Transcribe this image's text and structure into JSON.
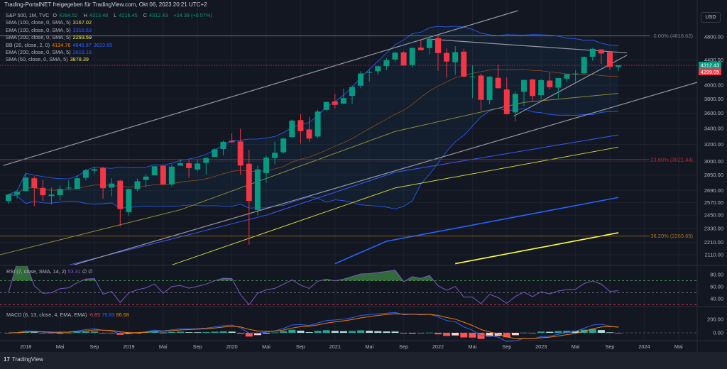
{
  "header": {
    "title": "Trading-PortalNET freigegeben für TradingView.com, Okt 06, 2023 20:21 UTC+2"
  },
  "legend": {
    "symbol": "S&P 500, 1M, TVC",
    "o_label": "O",
    "o": "4284.52",
    "h_label": "H",
    "h": "4313.48",
    "l_label": "L",
    "l": "4216.45",
    "c_label": "C",
    "c": "4312.43",
    "change": "+24.39 (+0.57%)",
    "indicators": [
      {
        "label": "SMA (100, close, 0, SMA, 5)",
        "values": [
          "3167.02"
        ],
        "colors": [
          "#e6e64c"
        ]
      },
      {
        "label": "EMA (100, close, 0, SMA, 5)",
        "values": [
          "3316.63"
        ],
        "colors": [
          "#3d5afe"
        ]
      },
      {
        "label": "SMA (200, close, 0, SMA, 5)",
        "values": [
          "2293.59"
        ],
        "colors": [
          "#ffff3b"
        ]
      },
      {
        "label": "BB (20, close, 2, 0)",
        "values": [
          "4134.76",
          "4645.87",
          "3623.65"
        ],
        "colors": [
          "#f57c00",
          "#2962ff",
          "#2962ff"
        ]
      },
      {
        "label": "EMA (200, close, 0, SMA, 5)",
        "values": [
          "2619.18"
        ],
        "colors": [
          "#2962ff"
        ]
      },
      {
        "label": "SMA (50, close, 0, SMA, 5)",
        "values": [
          "3878.39"
        ],
        "colors": [
          "#e6e64c"
        ]
      }
    ]
  },
  "currency_button": "USD",
  "rsi_legend": {
    "label": "RSI (7, close, SMA, 14, 2)",
    "value": "53.31",
    "extra": "∅ ∅"
  },
  "macd_legend": {
    "label": "MACD (6, 13, close, 4, EMA, EMA)",
    "values": [
      "-6.85",
      "79.83",
      "86.68"
    ],
    "colors": [
      "#f23645",
      "#2962ff",
      "#f57c00"
    ]
  },
  "price_tags": [
    {
      "value": "4312.43",
      "color": "#089981"
    },
    {
      "value": "4299.05",
      "color": "#f23645"
    }
  ],
  "footer": {
    "brand": "TradingView",
    "logo": "17"
  },
  "colors": {
    "up": "#089981",
    "down": "#f23645",
    "bg": "#131722"
  },
  "chart_data": {
    "type": "candlestick",
    "title": "S&P 500, 1M, TVC",
    "scale": "log",
    "start": "2017-11",
    "ohlc": [
      [
        2583,
        2657,
        2557,
        2648
      ],
      [
        2645,
        2695,
        2605,
        2674
      ],
      [
        2683,
        2873,
        2683,
        2824
      ],
      [
        2816,
        2835,
        2533,
        2714
      ],
      [
        2715,
        2801,
        2585,
        2641
      ],
      [
        2633,
        2718,
        2553,
        2648
      ],
      [
        2643,
        2742,
        2594,
        2705
      ],
      [
        2718,
        2791,
        2698,
        2718
      ],
      [
        2704,
        2848,
        2698,
        2816
      ],
      [
        2821,
        2916,
        2796,
        2902
      ],
      [
        2897,
        2941,
        2864,
        2914
      ],
      [
        2926,
        2940,
        2604,
        2712
      ],
      [
        2718,
        2816,
        2631,
        2760
      ],
      [
        2790,
        2800,
        2347,
        2507
      ],
      [
        2477,
        2708,
        2444,
        2704
      ],
      [
        2703,
        2813,
        2681,
        2784
      ],
      [
        2798,
        2860,
        2723,
        2834
      ],
      [
        2848,
        2950,
        2848,
        2946
      ],
      [
        2953,
        2954,
        2751,
        2752
      ],
      [
        2751,
        2964,
        2728,
        2942
      ],
      [
        2953,
        3028,
        2952,
        2980
      ],
      [
        2980,
        3014,
        2822,
        2926
      ],
      [
        2910,
        3022,
        2892,
        2977
      ],
      [
        2984,
        3050,
        2855,
        3038
      ],
      [
        3051,
        3154,
        3051,
        3141
      ],
      [
        3144,
        3248,
        3070,
        3231
      ],
      [
        3245,
        3338,
        3214,
        3226
      ],
      [
        3236,
        3394,
        2855,
        2954
      ],
      [
        2974,
        3136,
        2192,
        2585
      ],
      [
        2499,
        2954,
        2448,
        2912
      ],
      [
        2870,
        3068,
        2766,
        3044
      ],
      [
        3039,
        3233,
        2966,
        3100
      ],
      [
        3105,
        3280,
        3089,
        3271
      ],
      [
        3289,
        3514,
        3284,
        3500
      ],
      [
        3507,
        3588,
        3209,
        3363
      ],
      [
        3385,
        3550,
        3233,
        3270
      ],
      [
        3296,
        3646,
        3279,
        3622
      ],
      [
        3645,
        3760,
        3633,
        3756
      ],
      [
        3764,
        3870,
        3662,
        3714
      ],
      [
        3731,
        3950,
        3725,
        3811
      ],
      [
        3842,
        3994,
        3723,
        3973
      ],
      [
        3992,
        4218,
        3955,
        4181
      ],
      [
        4191,
        4238,
        4056,
        4204
      ],
      [
        4217,
        4302,
        4164,
        4298
      ],
      [
        4300,
        4429,
        4233,
        4395
      ],
      [
        4407,
        4537,
        4367,
        4523
      ],
      [
        4528,
        4546,
        4306,
        4308
      ],
      [
        4317,
        4608,
        4279,
        4605
      ],
      [
        4611,
        4743,
        4560,
        4567
      ],
      [
        4602,
        4808,
        4495,
        4766
      ],
      [
        4778,
        4819,
        4223,
        4516
      ],
      [
        4519,
        4595,
        4115,
        4374
      ],
      [
        4363,
        4637,
        4157,
        4530
      ],
      [
        4540,
        4594,
        4125,
        4132
      ],
      [
        4130,
        4307,
        3811,
        4132
      ],
      [
        4149,
        4177,
        3637,
        3785
      ],
      [
        3781,
        4140,
        3721,
        4130
      ],
      [
        4113,
        4325,
        3955,
        3955
      ],
      [
        3937,
        4119,
        3584,
        3586
      ],
      [
        3610,
        3906,
        3492,
        3872
      ],
      [
        3902,
        4080,
        3698,
        4080
      ],
      [
        4088,
        4101,
        3764,
        3840
      ],
      [
        3853,
        4095,
        3794,
        4077
      ],
      [
        4071,
        4195,
        3943,
        3970
      ],
      [
        3964,
        4110,
        3808,
        4109
      ],
      [
        4101,
        4170,
        4049,
        4169
      ],
      [
        4166,
        4231,
        4048,
        4180
      ],
      [
        4183,
        4458,
        4166,
        4450
      ],
      [
        4454,
        4607,
        4385,
        4589
      ],
      [
        4578,
        4584,
        4335,
        4508
      ],
      [
        4530,
        4541,
        4239,
        4288
      ],
      [
        4284.52,
        4313.48,
        4216.45,
        4312.43
      ]
    ],
    "overlays": [
      {
        "name": "sma-200-line",
        "color": "#ffff3b",
        "width": 1.6,
        "points": [
          [
            52,
            2040
          ],
          [
            71,
            2293
          ]
        ]
      },
      {
        "name": "ema-200-line",
        "color": "#2962ff",
        "width": 1.6,
        "points": [
          [
            38,
            2040
          ],
          [
            44,
            2220
          ],
          [
            71,
            2619
          ]
        ]
      },
      {
        "name": "sma-100-line",
        "color": "#cfcf45",
        "width": 1,
        "points": [
          [
            19,
            2030
          ],
          [
            45,
            2715
          ],
          [
            71,
            3167
          ]
        ]
      },
      {
        "name": "ema-100-line",
        "color": "#3d5afe",
        "width": 1,
        "points": [
          [
            7,
            2030
          ],
          [
            30,
            2450
          ],
          [
            45,
            2880
          ],
          [
            71,
            3316
          ]
        ]
      },
      {
        "name": "sma-50-line",
        "color": "#8a8a3a",
        "width": 1,
        "points": [
          [
            -1,
            2110
          ],
          [
            20,
            2500
          ],
          [
            45,
            3360
          ],
          [
            60,
            3750
          ],
          [
            71,
            3878
          ]
        ]
      }
    ],
    "drawings": [
      {
        "name": "channel-upper-line",
        "points": [
          [
            -0.6,
            2955
          ],
          [
            59.3,
            5300
          ]
        ]
      },
      {
        "name": "channel-lower-line",
        "points": [
          [
            7.3,
            2025
          ],
          [
            80.4,
            4053
          ]
        ]
      },
      {
        "name": "triangle-upper-line",
        "points": [
          [
            49,
            4760
          ],
          [
            72,
            4520
          ]
        ]
      },
      {
        "name": "triangle-lower-line",
        "points": [
          [
            58.8,
            3560
          ],
          [
            72,
            4480
          ]
        ]
      }
    ],
    "fib_levels": [
      {
        "label": "0.00% (4818.62)",
        "price": 4818.62,
        "color": "#787b86"
      },
      {
        "label": "23.60% (3021.44)",
        "price": 3021.44,
        "color": "#b2323f"
      },
      {
        "label": "38.20% (2263.65)",
        "price": 2263.65,
        "color": "#b2741f"
      }
    ],
    "price_axis": [
      "4800.00",
      "4400.00",
      "4000.00",
      "3800.00",
      "3600.00",
      "3400.00",
      "3200.00",
      "3000.00",
      "2850.00",
      "2690.00",
      "2570.00",
      "2450.00",
      "2330.00",
      "2210.00",
      "2110.00"
    ],
    "time_axis": [
      {
        "label": "2018",
        "m": 2
      },
      {
        "label": "Mai",
        "m": 6
      },
      {
        "label": "Sep",
        "m": 10
      },
      {
        "label": "2019",
        "m": 14
      },
      {
        "label": "Mai",
        "m": 18
      },
      {
        "label": "Sep",
        "m": 22
      },
      {
        "label": "2020",
        "m": 26
      },
      {
        "label": "Mai",
        "m": 30
      },
      {
        "label": "Sep",
        "m": 34
      },
      {
        "label": "2021",
        "m": 38
      },
      {
        "label": "Mai",
        "m": 42
      },
      {
        "label": "Sep",
        "m": 46
      },
      {
        "label": "2022",
        "m": 50
      },
      {
        "label": "Mai",
        "m": 54
      },
      {
        "label": "Sep",
        "m": 58
      },
      {
        "label": "2023",
        "m": 62
      },
      {
        "label": "Mai",
        "m": 66
      },
      {
        "label": "Sep",
        "m": 70
      },
      {
        "label": "2024",
        "m": 74
      },
      {
        "label": "Mai",
        "m": 78
      }
    ],
    "rsi_axis": [
      "80.00",
      "60.00",
      "40.00"
    ],
    "rsi_levels": [
      70,
      50,
      30
    ],
    "macd_axis": [
      "200.00",
      "0.00"
    ],
    "rsi_period": 7,
    "macd_params": [
      6,
      13,
      4
    ]
  }
}
